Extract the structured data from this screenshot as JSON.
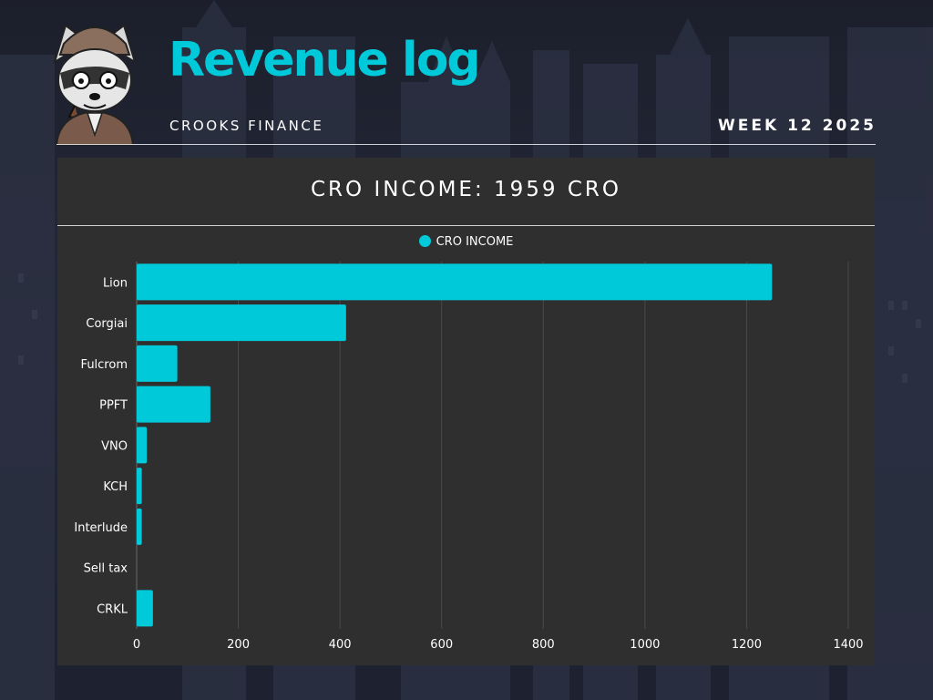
{
  "header": {
    "title": "Revenue log",
    "brand": "CROOKS FINANCE",
    "week": "WEEK 12 2025"
  },
  "colors": {
    "accent": "#00cad9",
    "panel": "#2f2f2f",
    "text": "#ffffff"
  },
  "chart_data": {
    "type": "bar",
    "orientation": "horizontal",
    "title": "CRO INCOME: 1959 CRO",
    "categories": [
      "Lion",
      "Corgiai",
      "Fulcrom",
      "PPFT",
      "VNO",
      "KCH",
      "Interlude",
      "Sell tax",
      "CRKL"
    ],
    "series": [
      {
        "name": "CRO INCOME",
        "color": "#00cad9",
        "values": [
          1250,
          412,
          80,
          145,
          20,
          10,
          10,
          0,
          32
        ]
      }
    ],
    "xlim": [
      0,
      1400
    ],
    "xticks": [
      0,
      200,
      400,
      600,
      800,
      1000,
      1200,
      1400
    ],
    "grid": true,
    "legend": "top-center"
  }
}
